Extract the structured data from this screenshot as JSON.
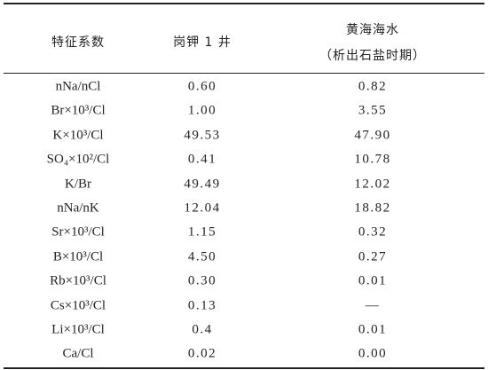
{
  "table": {
    "headers": [
      "特征系数",
      "岗钾 1 井",
      [
        "黄海海水",
        "（析出石盐时期）"
      ]
    ],
    "rows": [
      [
        "nNa/nCl",
        "0.60",
        "0.82"
      ],
      [
        "Br×10³/Cl",
        "1.00",
        "3.55"
      ],
      [
        "K×10³/Cl",
        "49.53",
        "47.90"
      ],
      [
        "SO₄×10²/Cl",
        "0.41",
        "10.78"
      ],
      [
        "K/Br",
        "49.49",
        "12.02"
      ],
      [
        "nNa/nK",
        "12.04",
        "18.82"
      ],
      [
        "Sr×10³/Cl",
        "1.15",
        "0.32"
      ],
      [
        "B×10³/Cl",
        "4.50",
        "0.27"
      ],
      [
        "Rb×10³/Cl",
        "0.30",
        "0.01"
      ],
      [
        "Cs×10³/Cl",
        "0.13",
        "—"
      ],
      [
        "Li×10³/Cl",
        "0.4",
        "0.01"
      ],
      [
        "Ca/Cl",
        "0.02",
        "0.00"
      ]
    ]
  }
}
